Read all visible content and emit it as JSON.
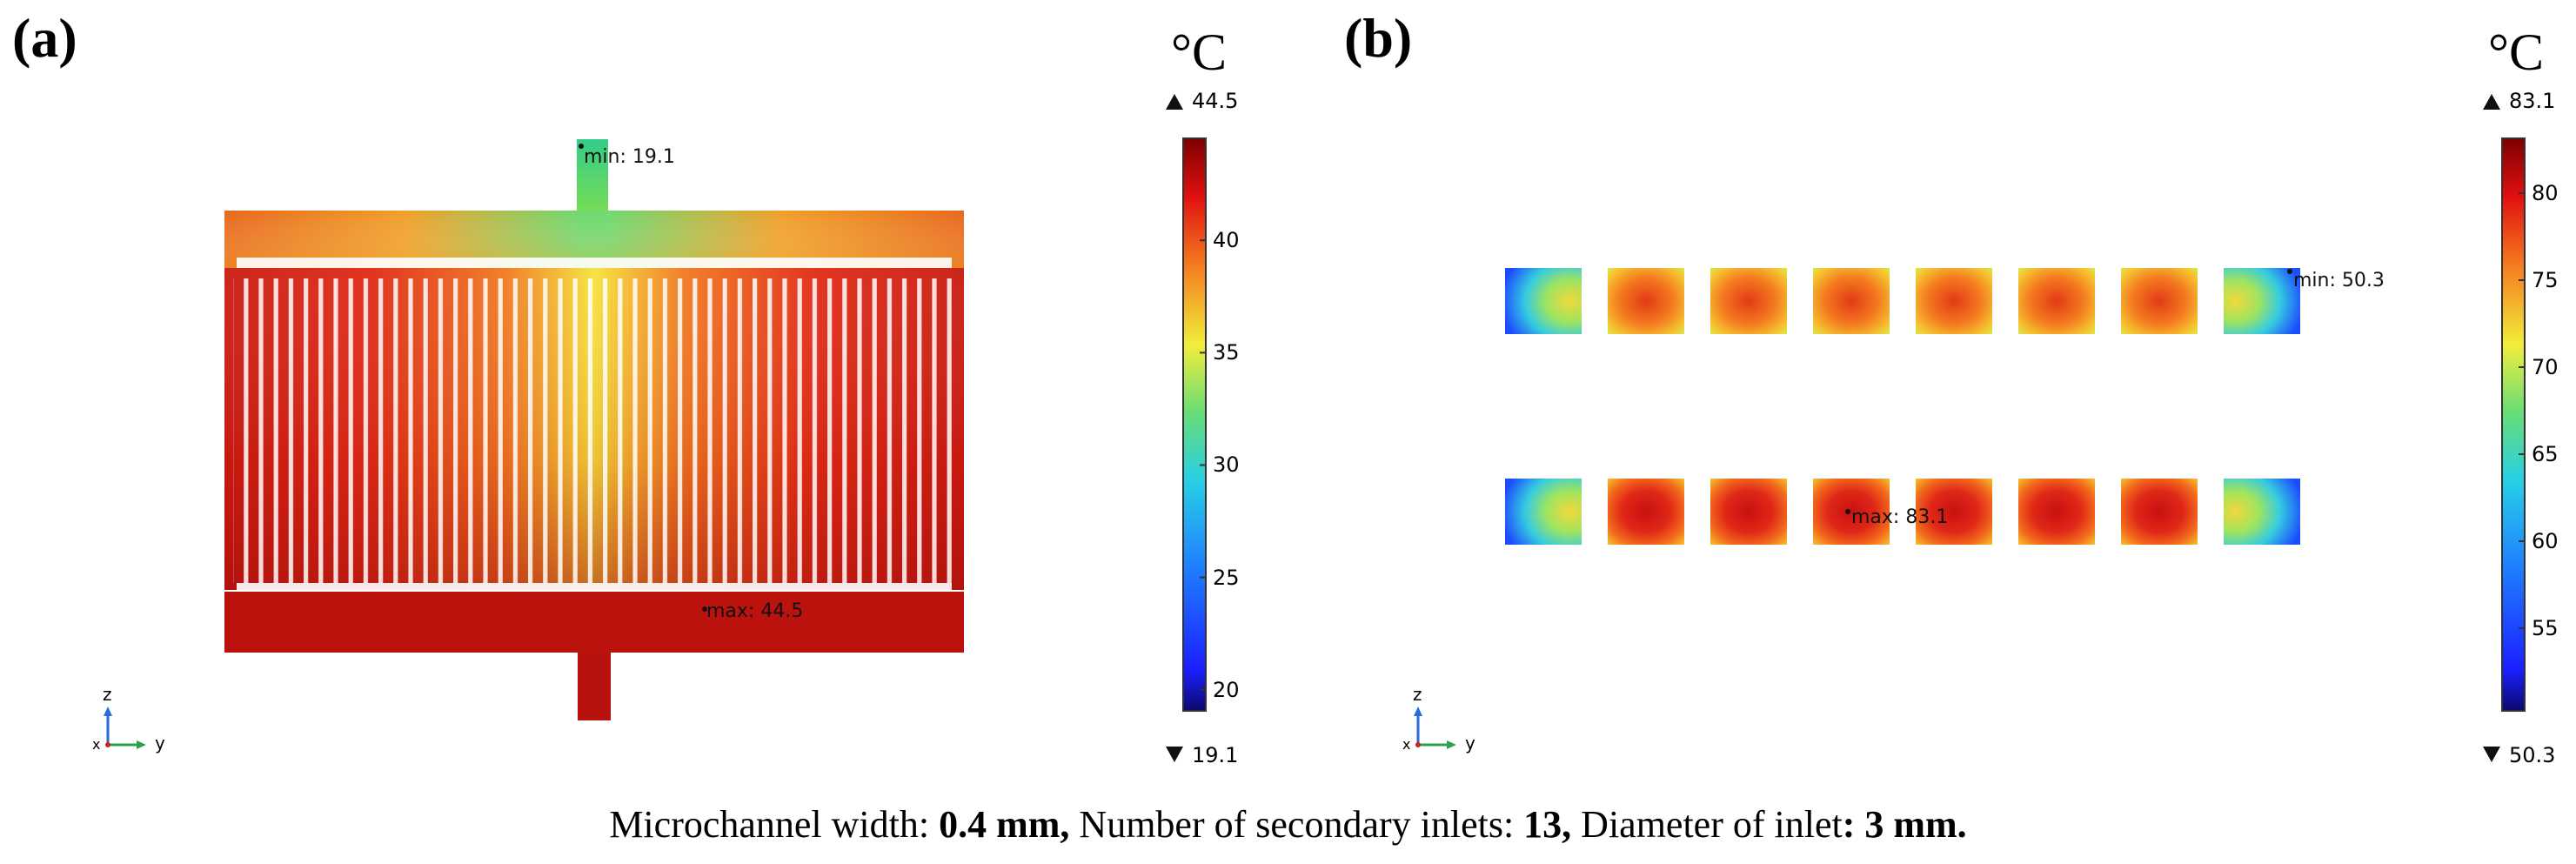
{
  "panel_a": {
    "label": "(a)",
    "unit": "°C",
    "colorbar": {
      "max_label": "44.5",
      "min_label": "19.1",
      "ticks": [
        "40",
        "35",
        "30",
        "25",
        "20"
      ],
      "tick_values": [
        40,
        35,
        30,
        25,
        20
      ],
      "range": [
        19.1,
        44.5
      ]
    },
    "annotations": {
      "min": "min: 19.1",
      "max": "max: 44.5"
    },
    "axes": {
      "vertical": "z",
      "horizontal": "y",
      "out": "x"
    }
  },
  "panel_b": {
    "label": "(b)",
    "unit": "°C",
    "colorbar": {
      "max_label": "83.1",
      "min_label": "50.3",
      "ticks": [
        "80",
        "75",
        "70",
        "65",
        "60",
        "55"
      ],
      "tick_values": [
        80,
        75,
        70,
        65,
        60,
        55
      ],
      "range": [
        50.3,
        83.1
      ]
    },
    "annotations": {
      "min": "min: 50.3",
      "max": "max: 83.1"
    },
    "axes": {
      "vertical": "z",
      "horizontal": "y",
      "out": "x"
    }
  },
  "caption": {
    "p1": "Microchannel width: ",
    "b1": "0.4 mm,",
    "p2": " Number of secondary inlets: ",
    "b2": "13,",
    "p3": " Diameter of inlet",
    "b3": ": 3 mm."
  },
  "colors": {
    "jet_dark_red": "#7f0000",
    "jet_red": "#e01010",
    "jet_orange": "#f57a1f",
    "jet_yellow": "#f2ee3a",
    "jet_green": "#66dd77",
    "jet_cyan": "#27cfe6",
    "jet_blue": "#1b3cff",
    "jet_dark_blue": "#0c0a6e"
  }
}
